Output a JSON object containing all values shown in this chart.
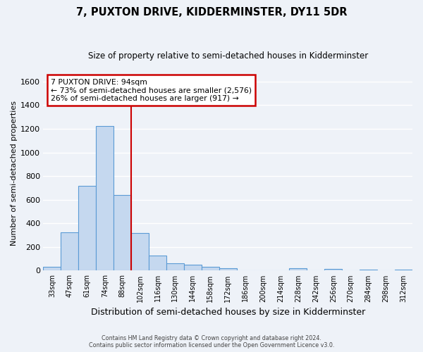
{
  "title": "7, PUXTON DRIVE, KIDDERMINSTER, DY11 5DR",
  "subtitle": "Size of property relative to semi-detached houses in Kidderminster",
  "xlabel": "Distribution of semi-detached houses by size in Kidderminster",
  "ylabel": "Number of semi-detached properties",
  "footer_line1": "Contains HM Land Registry data © Crown copyright and database right 2024.",
  "footer_line2": "Contains public sector information licensed under the Open Government Licence v3.0.",
  "bin_labels": [
    "33sqm",
    "47sqm",
    "61sqm",
    "74sqm",
    "88sqm",
    "102sqm",
    "116sqm",
    "130sqm",
    "144sqm",
    "158sqm",
    "172sqm",
    "186sqm",
    "200sqm",
    "214sqm",
    "228sqm",
    "242sqm",
    "256sqm",
    "270sqm",
    "284sqm",
    "298sqm",
    "312sqm"
  ],
  "bar_values": [
    30,
    325,
    715,
    1225,
    640,
    320,
    125,
    65,
    50,
    30,
    20,
    0,
    0,
    0,
    20,
    0,
    15,
    0,
    10,
    0,
    10
  ],
  "bar_color": "#c5d8ef",
  "bar_edge_color": "#5b9bd5",
  "vline_color": "#cc0000",
  "vline_x_index": 4,
  "annotation_title": "7 PUXTON DRIVE: 94sqm",
  "annotation_left": "← 73% of semi-detached houses are smaller (2,576)",
  "annotation_right": "26% of semi-detached houses are larger (917) →",
  "annotation_box_color": "white",
  "annotation_box_edge": "#cc0000",
  "ylim": [
    0,
    1650
  ],
  "yticks": [
    0,
    200,
    400,
    600,
    800,
    1000,
    1200,
    1400,
    1600
  ],
  "bg_color": "#eef2f8",
  "grid_color": "white",
  "n_bins": 21,
  "vline_after_bin": 4
}
